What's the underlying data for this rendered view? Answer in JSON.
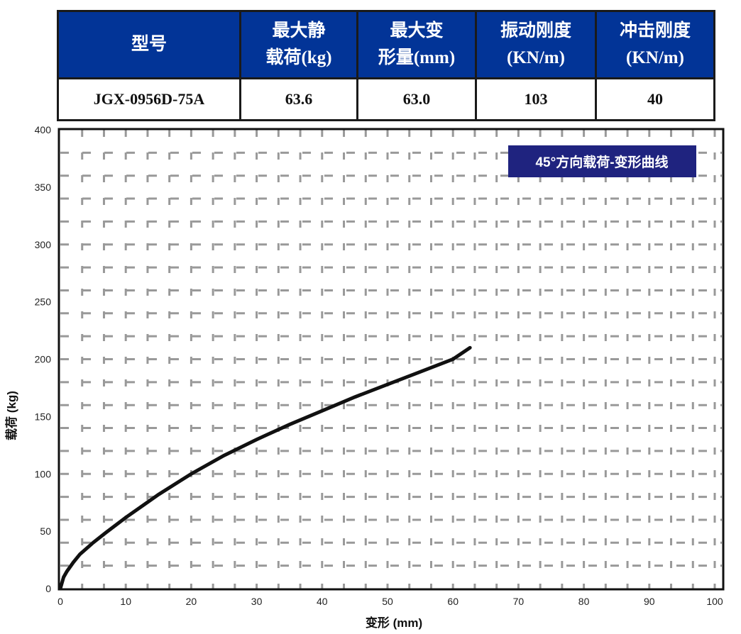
{
  "table": {
    "headers": [
      [
        "型号"
      ],
      [
        "最大静",
        "载荷(kg)"
      ],
      [
        "最大变",
        "形量(mm)"
      ],
      [
        "振动刚度",
        "(KN/m)"
      ],
      [
        "冲击刚度",
        "(KN/m)"
      ]
    ],
    "row": [
      "JGX-0956D-75A",
      "63.6",
      "63.0",
      "103",
      "40"
    ],
    "header_color": "#023497"
  },
  "chart_data": {
    "type": "line",
    "legend_label": "45°方向载荷-变形曲线",
    "legend_placement": "top-right",
    "legend_color": "#1f237f",
    "xlabel": "变形 (mm)",
    "ylabel": "载荷 (kg)",
    "xlim": [
      0,
      100
    ],
    "ylim": [
      0,
      400
    ],
    "xticks": [
      0,
      10,
      20,
      30,
      40,
      50,
      60,
      70,
      80,
      90,
      100
    ],
    "yticks": [
      0,
      50,
      100,
      150,
      200,
      250,
      300,
      350,
      400
    ],
    "grid": true,
    "series": [
      {
        "color": "#111111",
        "x": [
          0,
          0.5,
          1,
          2,
          3,
          5,
          7,
          10,
          13,
          15,
          20,
          25,
          30,
          35,
          40,
          45,
          50,
          55,
          60,
          62.6
        ],
        "y": [
          0,
          10,
          15,
          23,
          30,
          40,
          49,
          62,
          74,
          82,
          100,
          116,
          130,
          143,
          155,
          167,
          178,
          189,
          200,
          210
        ]
      }
    ]
  }
}
